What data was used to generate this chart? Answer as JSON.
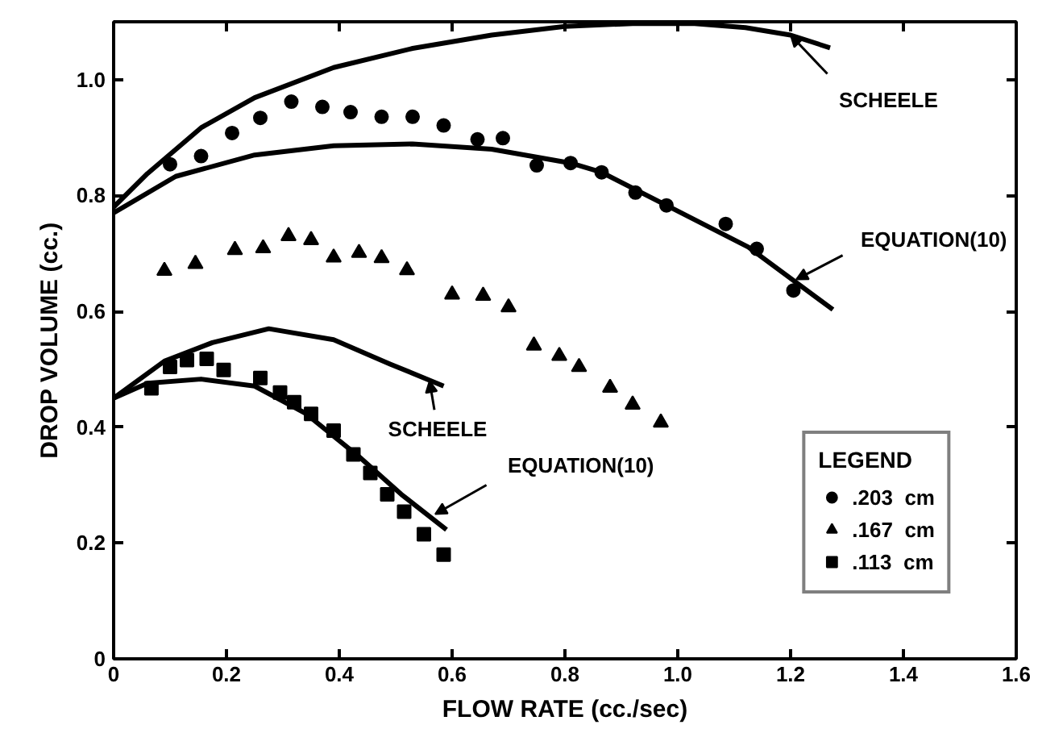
{
  "chart_data": {
    "type": "scatter",
    "xlabel": "FLOW RATE (cc./sec)",
    "ylabel": "DROP VOLUME (cc.)",
    "legend_title": "LEGEND",
    "legend": "bottom right",
    "grid": false,
    "xlim": [
      0,
      1.6
    ],
    "ylim": [
      0,
      1.1
    ],
    "xticks": [
      0,
      0.2,
      0.4,
      0.6,
      0.8,
      "1.0",
      1.2,
      1.4,
      1.6
    ],
    "yticks": [
      0,
      0.2,
      0.4,
      0.6,
      0.8,
      {
        "value": 1.0,
        "label": "1.0"
      }
    ],
    "series": [
      {
        "name": ".203  cm",
        "marker": "circle",
        "color": "#000000",
        "x": [
          0.1,
          0.155,
          0.21,
          0.26,
          0.315,
          0.37,
          0.42,
          0.475,
          0.53,
          0.585,
          0.645,
          0.69,
          0.75,
          0.81,
          0.865,
          0.925,
          0.98,
          1.085,
          1.14,
          1.205
        ],
        "values": [
          0.854,
          0.868,
          0.908,
          0.934,
          0.962,
          0.953,
          0.944,
          0.936,
          0.936,
          0.921,
          0.897,
          0.899,
          0.852,
          0.856,
          0.84,
          0.805,
          0.783,
          0.751,
          0.708,
          0.636
        ]
      },
      {
        "name": ".167  cm",
        "marker": "triangle",
        "color": "#000000",
        "x": [
          0.09,
          0.145,
          0.215,
          0.265,
          0.31,
          0.35,
          0.39,
          0.435,
          0.475,
          0.52,
          0.6,
          0.655,
          0.7,
          0.745,
          0.79,
          0.825,
          0.88,
          0.92,
          0.97
        ],
        "values": [
          0.67,
          0.682,
          0.706,
          0.709,
          0.73,
          0.723,
          0.693,
          0.701,
          0.692,
          0.671,
          0.629,
          0.627,
          0.607,
          0.541,
          0.523,
          0.504,
          0.468,
          0.439,
          0.408
        ]
      },
      {
        "name": ".113  cm",
        "marker": "square",
        "color": "#000000",
        "x": [
          0.067,
          0.1,
          0.13,
          0.165,
          0.195,
          0.26,
          0.295,
          0.32,
          0.35,
          0.39,
          0.425,
          0.455,
          0.485,
          0.515,
          0.55,
          0.585
        ],
        "values": [
          0.467,
          0.504,
          0.516,
          0.518,
          0.499,
          0.485,
          0.46,
          0.443,
          0.423,
          0.394,
          0.353,
          0.321,
          0.284,
          0.254,
          0.215,
          0.18
        ]
      },
      {
        "type": "line",
        "color": "#000000",
        "line_style": "solid",
        "x": [
          0,
          0.06,
          0.155,
          0.25,
          0.39,
          0.53,
          0.67,
          0.8,
          0.92,
          1.03,
          1.12,
          1.2,
          1.27
        ],
        "values": [
          0.78,
          0.838,
          0.917,
          0.969,
          1.021,
          1.054,
          1.077,
          1.092,
          1.097,
          1.097,
          1.09,
          1.077,
          1.055
        ]
      },
      {
        "type": "line",
        "color": "#000000",
        "line_style": "solid",
        "x": [
          0,
          0.11,
          0.25,
          0.39,
          0.53,
          0.67,
          0.81,
          0.865,
          0.98,
          1.125,
          1.275
        ],
        "values": [
          0.77,
          0.833,
          0.87,
          0.886,
          0.889,
          0.88,
          0.856,
          0.84,
          0.783,
          0.711,
          0.603
        ]
      },
      {
        "type": "line",
        "color": "#000000",
        "line_style": "solid",
        "x": [
          0,
          0.09,
          0.175,
          0.275,
          0.39,
          0.49,
          0.585
        ],
        "values": [
          0.45,
          0.514,
          0.546,
          0.57,
          0.551,
          0.509,
          0.471
        ]
      },
      {
        "type": "line",
        "color": "#000000",
        "line_style": "solid",
        "x": [
          0,
          0.06,
          0.155,
          0.25,
          0.34,
          0.435,
          0.51,
          0.59
        ],
        "values": [
          0.45,
          0.476,
          0.483,
          0.471,
          0.424,
          0.349,
          0.284,
          0.223
        ]
      }
    ],
    "annotations": [
      {
        "text": "SCHEELE",
        "x": 1.2,
        "y": 1.077
      },
      {
        "text": "EQUATION(10)",
        "x": 1.21,
        "y": 0.655
      },
      {
        "text": "SCHEELE",
        "x": 0.56,
        "y": 0.48
      },
      {
        "text": "EQUATION(10)",
        "x": 0.57,
        "y": 0.25
      }
    ]
  }
}
